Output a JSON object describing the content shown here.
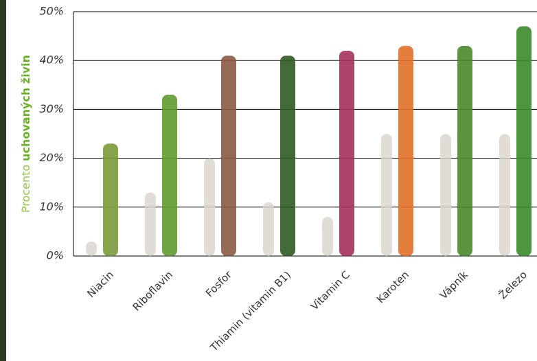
{
  "chart_data": {
    "type": "bar",
    "ylabel": [
      "Procento",
      "uchovaných živin"
    ],
    "categories": [
      "Niacin",
      "Riboflavin",
      "Fosfor",
      "Thiamin (vitamin B1)",
      "Vitamin C",
      "Karoten",
      "Vápník",
      "Železo"
    ],
    "series": [
      {
        "color": "#d9d4cc",
        "values": [
          3,
          13,
          20,
          11,
          8,
          25,
          25,
          25
        ]
      },
      {
        "colors": [
          "#7a9a3a",
          "#5e9a2e",
          "#8a5a44",
          "#2f5a22",
          "#a3305c",
          "#e0702a",
          "#4a8a2a",
          "#3a8a2a"
        ],
        "values": [
          23,
          33,
          41,
          41,
          42,
          43,
          43,
          47
        ]
      }
    ],
    "ylim": [
      0,
      50
    ],
    "yticks": [
      {
        "value": 0,
        "label": "0%"
      },
      {
        "value": 10,
        "label": "10%"
      },
      {
        "value": 20,
        "label": "20%"
      },
      {
        "value": 30,
        "label": "30%"
      },
      {
        "value": 40,
        "label": "40%"
      },
      {
        "value": 50,
        "label": "50%"
      }
    ],
    "grid": true
  }
}
